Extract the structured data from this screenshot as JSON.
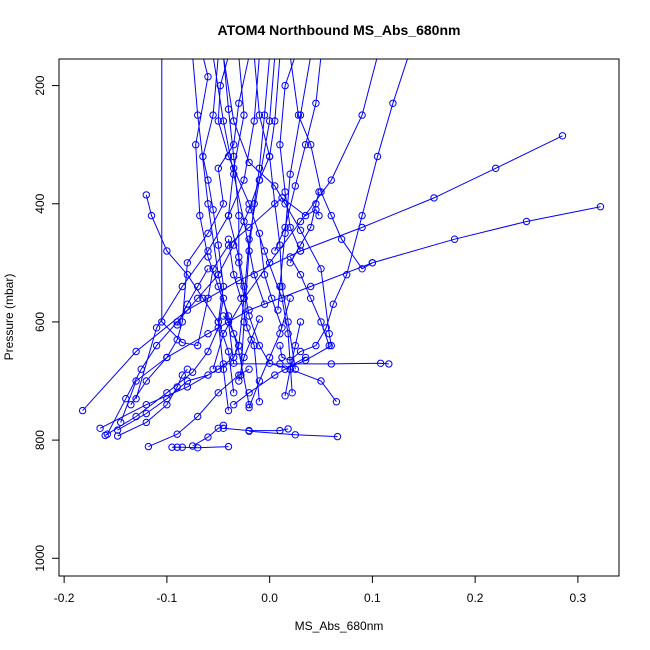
{
  "chart_data": {
    "type": "scatter",
    "title": "ATOM4 Northbound MS_Abs_680nm",
    "xlabel": "MS_Abs_680nm",
    "ylabel": "Pressure (mbar)",
    "xlim": [
      -0.205,
      0.34
    ],
    "ylim": [
      1030,
      155
    ],
    "y_reversed": true,
    "x_ticks": [
      -0.2,
      -0.1,
      0.0,
      0.1,
      0.2,
      0.3
    ],
    "x_tick_labels": [
      "-0.2",
      "-0.1",
      "0.0",
      "0.1",
      "0.2",
      "0.3"
    ],
    "y_ticks": [
      200,
      400,
      600,
      800,
      1000
    ],
    "y_tick_labels": [
      "200",
      "400",
      "600",
      "800",
      "1000"
    ],
    "grid": false,
    "legend": "none",
    "color": "#0000ff",
    "marker": "open-circle",
    "connected": true,
    "series": [
      {
        "x": [
          -0.045,
          -0.035,
          -0.02,
          0.005,
          0.015,
          0.03,
          0.05,
          0.058,
          0.06,
          0.035,
          0.015
        ],
        "y": [
          150,
          260,
          330,
          370,
          400,
          445,
          510,
          620,
          640,
          665,
          680
        ]
      },
      {
        "x": [
          -0.105,
          -0.105,
          -0.085,
          -0.07,
          -0.06,
          -0.055,
          -0.04,
          -0.02,
          0.012,
          0.035,
          0.045,
          0.048
        ],
        "y": [
          150,
          600,
          635,
          640,
          560,
          510,
          470,
          440,
          390,
          420,
          410,
          420
        ]
      },
      {
        "x": [
          -0.02,
          -0.03,
          -0.035,
          -0.05,
          -0.045,
          -0.06,
          -0.08,
          -0.085,
          -0.09,
          -0.1,
          -0.12,
          -0.135
        ],
        "y": [
          150,
          230,
          300,
          340,
          400,
          450,
          500,
          600,
          630,
          660,
          700,
          740
        ]
      },
      {
        "x": [
          0.01,
          0.005,
          0.0,
          -0.01,
          -0.02,
          -0.035,
          -0.05,
          -0.07,
          -0.09,
          -0.11,
          -0.125,
          -0.14,
          -0.158
        ],
        "y": [
          150,
          260,
          320,
          360,
          410,
          470,
          520,
          560,
          600,
          640,
          680,
          730,
          790
        ]
      },
      {
        "x": [
          0.02,
          0.028,
          0.04,
          0.05,
          0.06,
          0.07,
          0.09,
          0.1
        ],
        "y": [
          150,
          250,
          300,
          380,
          420,
          460,
          510,
          500
        ]
      },
      {
        "x": [
          0.135,
          0.12,
          0.105,
          0.09,
          0.075,
          0.062,
          0.055,
          0.045,
          0.03,
          0.02,
          0.012,
          0.01
        ],
        "y": [
          150,
          230,
          320,
          420,
          520,
          570,
          610,
          640,
          650,
          665,
          660,
          640
        ]
      },
      {
        "x": [
          0.322,
          0.25,
          0.18,
          0.1,
          0.04,
          -0.02,
          -0.06,
          -0.1,
          -0.13,
          -0.145
        ],
        "y": [
          405,
          430,
          460,
          500,
          540,
          580,
          620,
          660,
          700,
          770
        ]
      },
      {
        "x": [
          0.285,
          0.22,
          0.16,
          0.09,
          0.03,
          -0.03,
          -0.08,
          -0.13,
          -0.182
        ],
        "y": [
          285,
          340,
          390,
          440,
          480,
          530,
          580,
          650,
          750
        ]
      },
      {
        "x": [
          -0.12,
          -0.115,
          -0.1,
          -0.08,
          -0.065,
          -0.05,
          -0.04,
          -0.035
        ],
        "y": [
          385,
          420,
          480,
          520,
          560,
          600,
          650,
          720
        ]
      },
      {
        "x": [
          0.025,
          0.015,
          0.01,
          0.015,
          0.02,
          0.03
        ],
        "y": [
          150,
          200,
          300,
          380,
          440,
          480
        ]
      },
      {
        "x": [
          0.105,
          0.09,
          0.06,
          0.03,
          0.0,
          -0.025,
          -0.045,
          -0.055
        ],
        "y": [
          150,
          250,
          360,
          430,
          500,
          560,
          620,
          680
        ]
      },
      {
        "x": [
          -0.05,
          -0.055,
          -0.065,
          -0.06,
          -0.055,
          -0.05,
          -0.045,
          -0.05,
          -0.045,
          -0.04
        ],
        "y": [
          150,
          250,
          320,
          360,
          410,
          470,
          540,
          600,
          680,
          750
        ]
      },
      {
        "x": [
          -0.04,
          -0.048,
          -0.05,
          -0.04,
          -0.02,
          -0.005,
          0.012,
          0.018,
          0.022
        ],
        "y": [
          150,
          200,
          260,
          320,
          400,
          480,
          560,
          620,
          720
        ]
      },
      {
        "x": [
          -0.03,
          -0.025,
          -0.035,
          -0.04,
          -0.03,
          -0.025,
          -0.02,
          -0.01,
          0.0,
          0.02,
          0.05,
          0.065
        ],
        "y": [
          150,
          250,
          340,
          420,
          490,
          540,
          590,
          640,
          670,
          680,
          700,
          735
        ]
      },
      {
        "x": [
          -0.065,
          -0.06,
          -0.072,
          -0.068,
          -0.06,
          -0.05,
          -0.04,
          -0.03,
          -0.02
        ],
        "y": [
          150,
          185,
          300,
          420,
          490,
          540,
          590,
          650,
          740
        ]
      },
      {
        "x": [
          -0.015,
          -0.01,
          0.0,
          0.005,
          0.01,
          0.012,
          0.018,
          0.025
        ],
        "y": [
          150,
          250,
          320,
          400,
          470,
          540,
          600,
          680
        ]
      },
      {
        "x": [
          -0.01,
          -0.015,
          -0.025,
          -0.04,
          -0.06,
          -0.085,
          -0.11,
          -0.13
        ],
        "y": [
          150,
          260,
          360,
          420,
          480,
          540,
          610,
          730
        ]
      },
      {
        "x": [
          -0.075,
          -0.07,
          -0.06,
          -0.05,
          -0.04,
          -0.035
        ],
        "y": [
          150,
          250,
          400,
          520,
          600,
          670
        ]
      },
      {
        "x": [
          0.005,
          0.0,
          -0.01,
          -0.02,
          -0.025,
          -0.03
        ],
        "y": [
          150,
          260,
          360,
          460,
          560,
          640
        ]
      },
      {
        "x": [
          -0.045,
          -0.04,
          -0.035,
          -0.03,
          -0.03,
          -0.025
        ],
        "y": [
          150,
          240,
          320,
          420,
          500,
          560
        ]
      },
      {
        "x": [
          0.04,
          0.03,
          0.02,
          0.015,
          0.01,
          0.008
        ],
        "y": [
          150,
          250,
          350,
          450,
          540,
          580
        ]
      },
      {
        "x": [
          -0.055,
          -0.045,
          -0.035,
          -0.025,
          -0.015,
          -0.005
        ],
        "y": [
          150,
          260,
          350,
          430,
          520,
          570
        ]
      },
      {
        "x": [
          0.0,
          -0.005,
          -0.01,
          -0.015,
          -0.02,
          -0.025,
          -0.028
        ],
        "y": [
          150,
          250,
          340,
          400,
          480,
          600,
          690
        ]
      },
      {
        "x": [
          0.05,
          0.045,
          0.035,
          0.025,
          0.015,
          0.005
        ],
        "y": [
          150,
          230,
          300,
          370,
          440,
          480
        ]
      },
      {
        "x": [
          -0.04,
          -0.035,
          -0.028,
          -0.022,
          -0.015,
          -0.01
        ],
        "y": [
          460,
          520,
          560,
          610,
          640,
          735
        ]
      },
      {
        "x": [
          -0.165,
          -0.12,
          -0.08,
          -0.05,
          -0.035,
          -0.03,
          -0.035,
          -0.04,
          -0.045
        ],
        "y": [
          780,
          740,
          710,
          680,
          660,
          640,
          620,
          600,
          590
        ]
      },
      {
        "x": [
          -0.16,
          -0.13,
          -0.1,
          -0.075,
          -0.06,
          -0.05,
          -0.045
        ],
        "y": [
          792,
          760,
          720,
          685,
          650,
          610,
          560
        ]
      },
      {
        "x": [
          -0.148,
          -0.12,
          -0.1,
          -0.09,
          -0.085,
          -0.08
        ],
        "y": [
          793,
          770,
          740,
          710,
          690,
          680
        ]
      },
      {
        "x": [
          -0.148,
          -0.12,
          -0.1,
          -0.08,
          -0.06
        ],
        "y": [
          783,
          755,
          730,
          700,
          690
        ]
      },
      {
        "x": [
          -0.095,
          -0.09,
          -0.085,
          -0.07,
          -0.04
        ],
        "y": [
          812,
          812,
          812,
          813,
          811
        ]
      },
      {
        "x": [
          -0.118,
          -0.09,
          -0.07,
          -0.05,
          -0.03,
          -0.02
        ],
        "y": [
          811,
          790,
          760,
          720,
          690,
          680
        ]
      },
      {
        "x": [
          -0.075,
          -0.06,
          -0.05,
          -0.045
        ],
        "y": [
          810,
          795,
          780,
          775
        ]
      },
      {
        "x": [
          -0.045,
          -0.02,
          0.01,
          0.018
        ],
        "y": [
          780,
          784,
          784,
          781
        ]
      },
      {
        "x": [
          -0.02,
          0.025,
          0.066
        ],
        "y": [
          785,
          791,
          794
        ]
      },
      {
        "x": [
          -0.045,
          0.01,
          0.06,
          0.108,
          0.116
        ],
        "y": [
          671,
          671,
          671,
          670,
          671
        ]
      },
      {
        "x": [
          -0.035,
          -0.02,
          0.005,
          0.035
        ],
        "y": [
          740,
          720,
          690,
          660
        ]
      },
      {
        "x": [
          0.048,
          0.045,
          0.04,
          0.03,
          0.02
        ],
        "y": [
          380,
          400,
          440,
          470,
          500
        ]
      },
      {
        "x": [
          -0.01,
          -0.005,
          0.002,
          0.012
        ],
        "y": [
          450,
          520,
          560,
          610
        ]
      },
      {
        "x": [
          -0.03,
          -0.025,
          -0.018,
          -0.01
        ],
        "y": [
          700,
          660,
          630,
          595
        ]
      },
      {
        "x": [
          0.058,
          0.05,
          0.04,
          0.03,
          0.02
        ],
        "y": [
          640,
          600,
          560,
          520,
          490
        ]
      },
      {
        "x": [
          -0.09,
          -0.08,
          -0.07,
          -0.06
        ],
        "y": [
          605,
          570,
          540,
          510
        ]
      },
      {
        "x": [
          -0.02,
          -0.01,
          0.0,
          0.01,
          0.02
        ],
        "y": [
          745,
          700,
          660,
          620,
          560
        ]
      },
      {
        "x": [
          0.015,
          0.02,
          0.025,
          0.03
        ],
        "y": [
          725,
          680,
          640,
          600
        ]
      }
    ]
  }
}
